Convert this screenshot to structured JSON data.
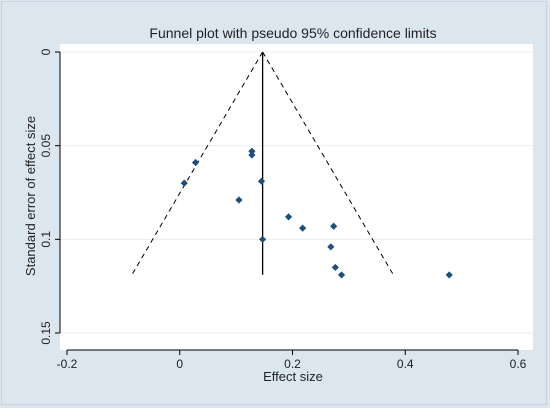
{
  "chart_data": {
    "type": "scatter",
    "title": "Funnel plot with pseudo 95% confidence limits",
    "xlabel": "Effect size",
    "ylabel": "Standard error of effect size",
    "xlim": [
      -0.2,
      0.6
    ],
    "ylim": [
      0,
      0.15
    ],
    "y_reversed": true,
    "x_ticks": [
      -0.2,
      0,
      0.2,
      0.4,
      0.6
    ],
    "x_tick_labels": [
      "-0.2",
      "0",
      "0.2",
      "0.4",
      "0.6"
    ],
    "y_ticks": [
      0,
      0.05,
      0.1,
      0.15
    ],
    "y_tick_labels": [
      "0",
      "0.05",
      "0.1",
      "0.15"
    ],
    "grid": "horizontal",
    "pooled_effect": 0.147,
    "funnel": {
      "apex": [
        0.147,
        0
      ],
      "left_base": [
        -0.085,
        0.119
      ],
      "right_base": [
        0.379,
        0.119
      ]
    },
    "points": [
      {
        "x": 0.008,
        "y": 0.07
      },
      {
        "x": 0.028,
        "y": 0.059
      },
      {
        "x": 0.128,
        "y": 0.053
      },
      {
        "x": 0.128,
        "y": 0.055
      },
      {
        "x": 0.105,
        "y": 0.079
      },
      {
        "x": 0.145,
        "y": 0.069
      },
      {
        "x": 0.147,
        "y": 0.1
      },
      {
        "x": 0.193,
        "y": 0.088
      },
      {
        "x": 0.218,
        "y": 0.094
      },
      {
        "x": 0.273,
        "y": 0.093
      },
      {
        "x": 0.268,
        "y": 0.104
      },
      {
        "x": 0.276,
        "y": 0.115
      },
      {
        "x": 0.287,
        "y": 0.119
      },
      {
        "x": 0.478,
        "y": 0.119
      }
    ],
    "colors": {
      "background": "#dce6ef",
      "plot_area": "#ffffff",
      "marker": "#1f4e79",
      "grid": "#e8eef3",
      "line": "#000000"
    }
  }
}
